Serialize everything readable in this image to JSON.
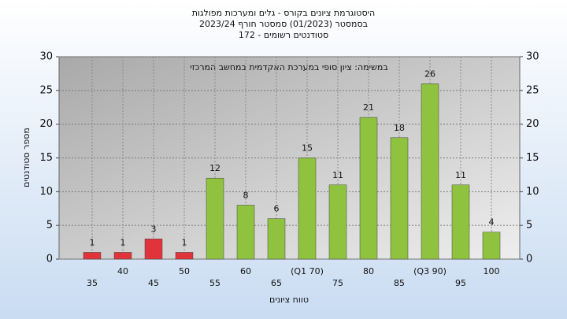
{
  "chart_data": {
    "type": "bar",
    "title": "היסטוגרמת ציונים בקורס - גלים ומערכות מפולגות",
    "subtitle": "בסמסטר  (01/2023)  סמסטר חורף 2023/24",
    "subtitle2": "סטודנטים רשומים - 172",
    "annotation": "במשימה: ציון סופי במערכת האקדמית במחשב המרכזי",
    "xlabel": "טווח ציונים",
    "ylabel": "מספר סטודנטים",
    "categories": [
      "35",
      "40",
      "45",
      "50",
      "55",
      "60",
      "65",
      "(Q1 70)",
      "75",
      "80",
      "85",
      "(Q3 90)",
      "95",
      "100"
    ],
    "values": [
      1,
      1,
      3,
      1,
      12,
      8,
      6,
      15,
      11,
      21,
      18,
      26,
      11,
      4
    ],
    "colors": [
      "#e0343a",
      "#e0343a",
      "#e0343a",
      "#e0343a",
      "#8fc23f",
      "#8fc23f",
      "#8fc23f",
      "#8fc23f",
      "#8fc23f",
      "#8fc23f",
      "#8fc23f",
      "#8fc23f",
      "#8fc23f",
      "#8fc23f"
    ],
    "ylim": [
      0,
      30
    ],
    "yticks": [
      0,
      5,
      10,
      15,
      20,
      25,
      30
    ],
    "y2lim": [
      0,
      30
    ],
    "y2ticks": [
      0,
      5,
      10,
      15,
      20,
      25,
      30
    ],
    "grid": true
  }
}
